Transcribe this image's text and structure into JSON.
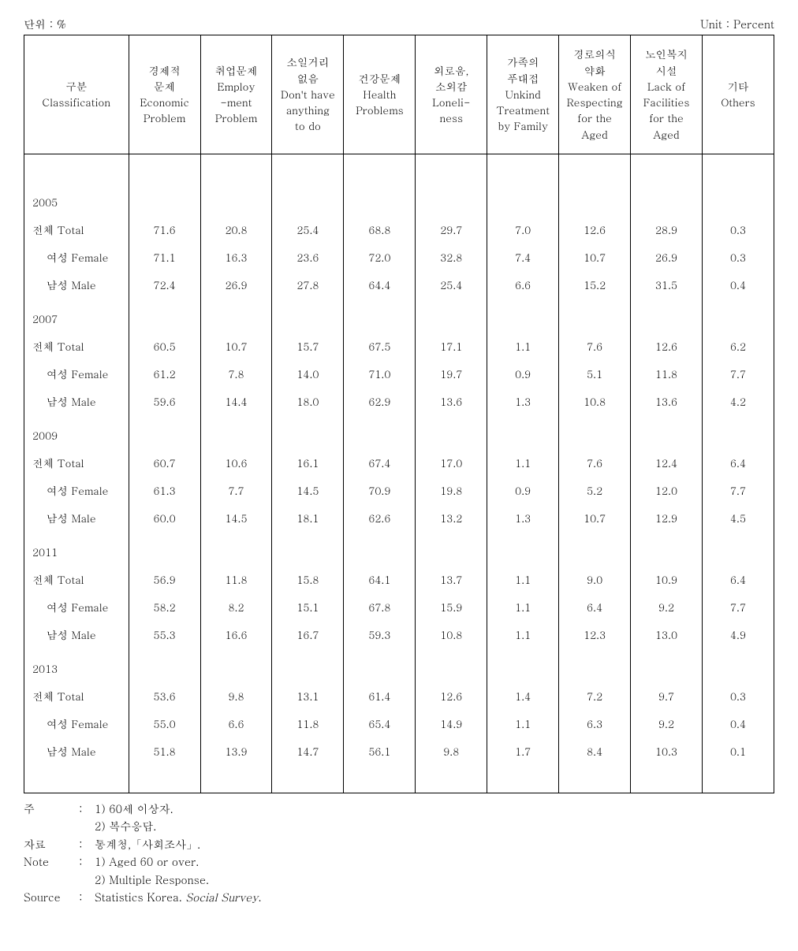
{
  "unit_left": "단위 : %",
  "unit_right": "Unit : Percent",
  "columns": [
    "구분\nClassification",
    "경제적\n문제\nEconomic\nProblem",
    "취업문제\nEmploy\n-ment\nProblem",
    "소일거리\n없음\nDon't have\nanything\nto do",
    "건강문제\nHealth\nProblems",
    "외로움,\n소외감\nLoneli-\nness",
    "가족의\n푸대접\nUnkind\nTreatment\nby Family",
    "경로의식\n약화\nWeaken of\nRespecting\nfor the\nAged",
    "노인복지\n시설\nLack of\nFacilities\nfor the\nAged",
    "기타\nOthers"
  ],
  "groups": [
    {
      "year": "2005",
      "rows": [
        {
          "label": "전체 Total",
          "cls": "total-row",
          "values": [
            "71.6",
            "20.8",
            "25.4",
            "68.8",
            "29.7",
            "7.0",
            "12.6",
            "28.9",
            "0.3"
          ]
        },
        {
          "label": "여성 Female",
          "cls": "sub-row",
          "values": [
            "71.1",
            "16.3",
            "23.6",
            "72.0",
            "32.8",
            "7.4",
            "10.7",
            "26.9",
            "0.3"
          ]
        },
        {
          "label": "남성 Male",
          "cls": "sub-row",
          "values": [
            "72.4",
            "26.9",
            "27.8",
            "64.4",
            "25.4",
            "6.6",
            "15.2",
            "31.5",
            "0.4"
          ]
        }
      ]
    },
    {
      "year": "2007",
      "rows": [
        {
          "label": "전체 Total",
          "cls": "total-row",
          "values": [
            "60.5",
            "10.7",
            "15.7",
            "67.5",
            "17.1",
            "1.1",
            "7.6",
            "12.6",
            "6.2"
          ]
        },
        {
          "label": "여성 Female",
          "cls": "sub-row",
          "values": [
            "61.2",
            "7.8",
            "14.0",
            "71.0",
            "19.7",
            "0.9",
            "5.1",
            "11.8",
            "7.7"
          ]
        },
        {
          "label": "남성 Male",
          "cls": "sub-row",
          "values": [
            "59.6",
            "14.4",
            "18.0",
            "62.9",
            "13.6",
            "1.3",
            "10.8",
            "13.6",
            "4.2"
          ]
        }
      ]
    },
    {
      "year": "2009",
      "rows": [
        {
          "label": "전체 Total",
          "cls": "total-row",
          "values": [
            "60.7",
            "10.6",
            "16.1",
            "67.4",
            "17.0",
            "1.1",
            "7.6",
            "12.4",
            "6.4"
          ]
        },
        {
          "label": "여성 Female",
          "cls": "sub-row",
          "values": [
            "61.3",
            "7.7",
            "14.5",
            "70.9",
            "19.8",
            "0.9",
            "5.2",
            "12.0",
            "7.7"
          ]
        },
        {
          "label": "남성 Male",
          "cls": "sub-row",
          "values": [
            "60.0",
            "14.5",
            "18.1",
            "62.6",
            "13.2",
            "1.3",
            "10.7",
            "12.9",
            "4.5"
          ]
        }
      ]
    },
    {
      "year": "2011",
      "rows": [
        {
          "label": "전체 Total",
          "cls": "total-row",
          "values": [
            "56.9",
            "11.8",
            "15.8",
            "64.1",
            "13.7",
            "1.1",
            "9.0",
            "10.9",
            "6.4"
          ]
        },
        {
          "label": "여성 Female",
          "cls": "sub-row",
          "values": [
            "58.2",
            "8.2",
            "15.1",
            "67.8",
            "15.9",
            "1.1",
            "6.4",
            "9.2",
            "7.7"
          ]
        },
        {
          "label": "남성 Male",
          "cls": "sub-row",
          "values": [
            "55.3",
            "16.6",
            "16.7",
            "59.3",
            "10.8",
            "1.1",
            "12.3",
            "13.0",
            "4.9"
          ]
        }
      ]
    },
    {
      "year": "2013",
      "rows": [
        {
          "label": "전체 Total",
          "cls": "total-row",
          "values": [
            "53.6",
            "9.8",
            "13.1",
            "61.4",
            "12.6",
            "1.4",
            "7.2",
            "9.7",
            "0.3"
          ]
        },
        {
          "label": "여성 Female",
          "cls": "sub-row",
          "values": [
            "55.0",
            "6.6",
            "11.8",
            "65.4",
            "14.9",
            "1.1",
            "6.3",
            "9.2",
            "0.4"
          ]
        },
        {
          "label": "남성 Male",
          "cls": "sub-row",
          "values": [
            "51.8",
            "13.9",
            "14.7",
            "56.1",
            "9.8",
            "1.7",
            "8.4",
            "10.3",
            "0.1"
          ]
        }
      ]
    }
  ],
  "footnotes": [
    {
      "label": "주",
      "sep": ":",
      "text": "1) 60세 이상자."
    },
    {
      "label": "",
      "sep": "",
      "text": "2) 복수응답."
    },
    {
      "label": "자료",
      "sep": ":",
      "text": "통계청,「사회조사」."
    },
    {
      "label": "Note",
      "sep": ":",
      "text": "1) Aged 60 or over."
    },
    {
      "label": "",
      "sep": "",
      "text": "2) Multiple Response."
    },
    {
      "label": "Source",
      "sep": ":",
      "text": "Statistics Korea. <i>Social Survey</i>."
    }
  ]
}
